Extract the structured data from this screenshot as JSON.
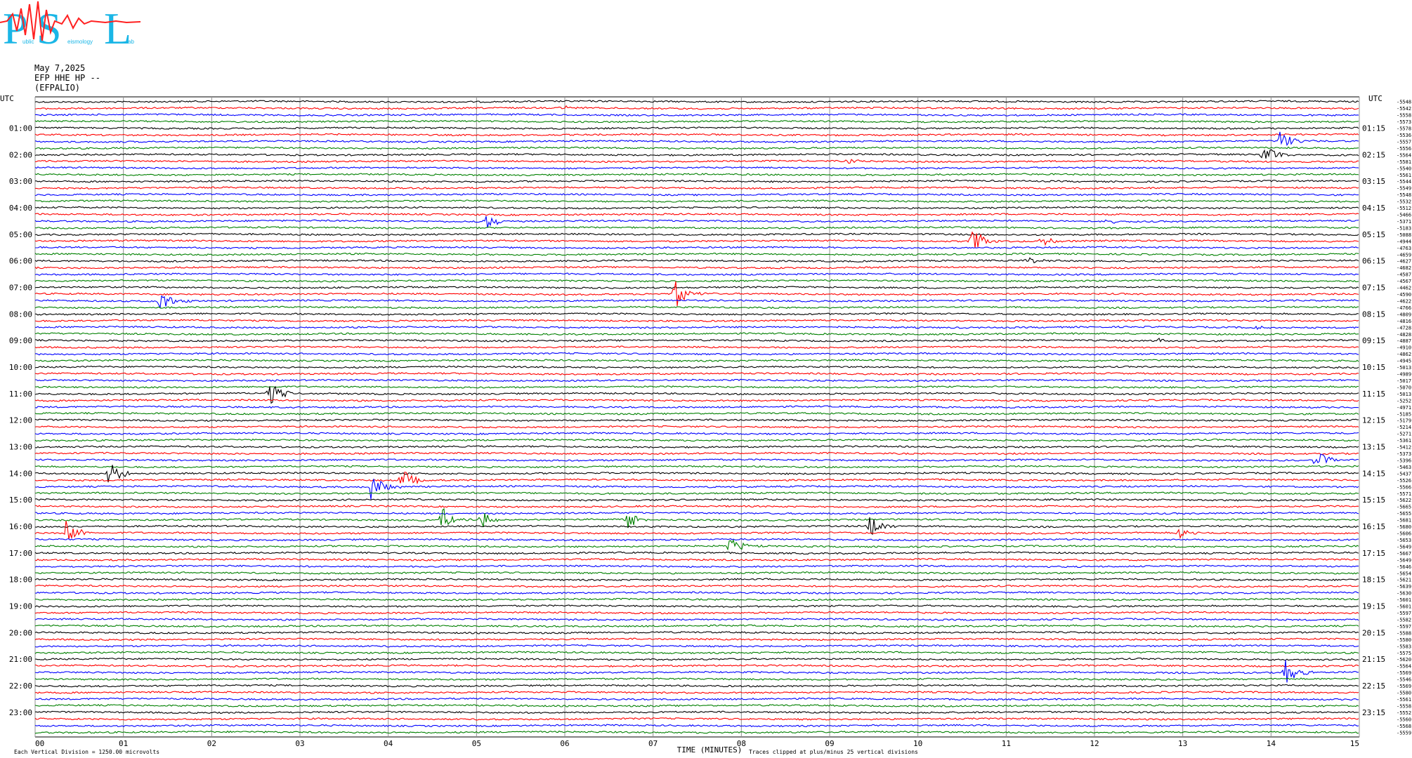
{
  "logo": {
    "text": "PSL",
    "subtitle_fragments": [
      "ublic",
      "eismology",
      "ab"
    ]
  },
  "header": {
    "date": "May 7,2025",
    "channel": "EFP HHE HP --",
    "station": "(EFPALIO)"
  },
  "axes": {
    "left_label": "UTC",
    "right_label": "UTC",
    "x_title": "TIME (MINUTES)",
    "x_ticks": [
      "00",
      "01",
      "02",
      "03",
      "04",
      "05",
      "06",
      "07",
      "08",
      "09",
      "10",
      "11",
      "12",
      "13",
      "14",
      "15"
    ],
    "left_hours": [
      "01:00",
      "02:00",
      "03:00",
      "04:00",
      "05:00",
      "06:00",
      "07:00",
      "08:00",
      "09:00",
      "10:00",
      "11:00",
      "12:00",
      "13:00",
      "14:00",
      "15:00",
      "16:00",
      "17:00",
      "18:00",
      "19:00",
      "20:00",
      "21:00",
      "22:00",
      "23:00"
    ],
    "right_hours": [
      "01:15",
      "02:15",
      "03:15",
      "04:15",
      "05:15",
      "06:15",
      "07:15",
      "08:15",
      "09:15",
      "10:15",
      "11:15",
      "12:15",
      "13:15",
      "14:15",
      "15:15",
      "16:15",
      "17:15",
      "18:15",
      "19:15",
      "20:15",
      "21:15",
      "22:15",
      "23:15"
    ],
    "right_values": [
      "-5548",
      "-5542",
      "-5558",
      "-5573",
      "-5578",
      "-5536",
      "-5557",
      "-5556",
      "-5564",
      "-5581",
      "-5540",
      "-5561",
      "-5544",
      "-5549",
      "-5548",
      "-5532",
      "-5512",
      "-5466",
      "-5371",
      "-5183",
      "-5088",
      "-4944",
      "-4763",
      "-4659",
      "-4627",
      "-4682",
      "-4587",
      "-4567",
      "-4462",
      "-4590",
      "-4622",
      "-4766",
      "-4809",
      "-4816",
      "-4728",
      "-4828",
      "-4887",
      "-4910",
      "-4862",
      "-4945",
      "-5013",
      "-4989",
      "-5017",
      "-5070",
      "-5013",
      "-5252",
      "-4971",
      "-5185",
      "-5179",
      "-5214",
      "-5271",
      "-5361",
      "-5412",
      "-5373",
      "-5396",
      "-5463",
      "-5437",
      "-5526",
      "-5566",
      "-5571",
      "-5622",
      "-5665",
      "-5655",
      "-5681",
      "-5680",
      "-5606",
      "-5653",
      "-5649",
      "-5667",
      "-5649",
      "-5646",
      "-5654",
      "-5621",
      "-5639",
      "-5630",
      "-5601",
      "-5601",
      "-5597",
      "-5582",
      "-5597",
      "-5588",
      "-5580",
      "-5583",
      "-5575",
      "-5620",
      "-5564",
      "-5569",
      "-5546",
      "-5569",
      "-5580",
      "-5561",
      "-5558",
      "-5552",
      "-5560",
      "-5568",
      "-5559"
    ]
  },
  "footer": {
    "scale_note": "Each Vertical Division = 1250.00 microvolts",
    "clip_note": "Traces clipped at plus/minus 25 vertical divisions"
  },
  "chart_data": {
    "type": "line",
    "title": "",
    "xlabel": "TIME (MINUTES)",
    "ylabel": "UTC",
    "xlim": [
      0,
      15
    ],
    "trace_count": 96,
    "trace_length_minutes": 15,
    "colors": [
      "#000000",
      "#ff0000",
      "#0000ff",
      "#008000"
    ],
    "grid": true,
    "events": [
      {
        "hour": 0,
        "minute": 5.95,
        "color": "#ff0000",
        "amp": 6
      },
      {
        "hour": 1,
        "minute": 14.1,
        "color": "#0000ff",
        "amp": 16
      },
      {
        "hour": 2,
        "minute": 9.2,
        "color": "#ff0000",
        "amp": 4
      },
      {
        "hour": 2,
        "minute": 13.9,
        "color": "#000000",
        "amp": 20
      },
      {
        "hour": 4,
        "minute": 5.05,
        "color": "#0000ff",
        "amp": 18
      },
      {
        "hour": 4,
        "minute": 12.1,
        "color": "#0000ff",
        "amp": 5
      },
      {
        "hour": 5,
        "minute": 10.6,
        "color": "#ff0000",
        "amp": 24
      },
      {
        "hour": 5,
        "minute": 11.4,
        "color": "#ff0000",
        "amp": 8
      },
      {
        "hour": 6,
        "minute": 11.25,
        "color": "#000000",
        "amp": 5
      },
      {
        "hour": 7,
        "minute": 1.4,
        "color": "#0000ff",
        "amp": 18
      },
      {
        "hour": 7,
        "minute": 7.25,
        "color": "#ff0000",
        "amp": 22
      },
      {
        "hour": 8,
        "minute": 13.8,
        "color": "#0000ff",
        "amp": 5
      },
      {
        "hour": 9,
        "minute": 12.7,
        "color": "#000000",
        "amp": 6
      },
      {
        "hour": 11,
        "minute": 2.65,
        "color": "#000000",
        "amp": 20
      },
      {
        "hour": 13,
        "minute": 14.5,
        "color": "#0000ff",
        "amp": 16
      },
      {
        "hour": 14,
        "minute": 0.8,
        "color": "#000000",
        "amp": 24
      },
      {
        "hour": 14,
        "minute": 3.8,
        "color": "#0000ff",
        "amp": 24
      },
      {
        "hour": 14,
        "minute": 4.15,
        "color": "#ff0000",
        "amp": 18
      },
      {
        "hour": 15,
        "minute": 5.05,
        "color": "#008000",
        "amp": 16
      },
      {
        "hour": 15,
        "minute": 4.6,
        "color": "#008000",
        "amp": 22
      },
      {
        "hour": 15,
        "minute": 6.7,
        "color": "#008000",
        "amp": 18
      },
      {
        "hour": 16,
        "minute": 0.35,
        "color": "#ff0000",
        "amp": 20
      },
      {
        "hour": 16,
        "minute": 12.95,
        "color": "#ff0000",
        "amp": 9
      },
      {
        "hour": 16,
        "minute": 7.85,
        "color": "#008000",
        "amp": 16
      },
      {
        "hour": 16,
        "minute": 9.45,
        "color": "#000000",
        "amp": 20
      },
      {
        "hour": 21,
        "minute": 14.15,
        "color": "#0000ff",
        "amp": 22
      }
    ]
  }
}
